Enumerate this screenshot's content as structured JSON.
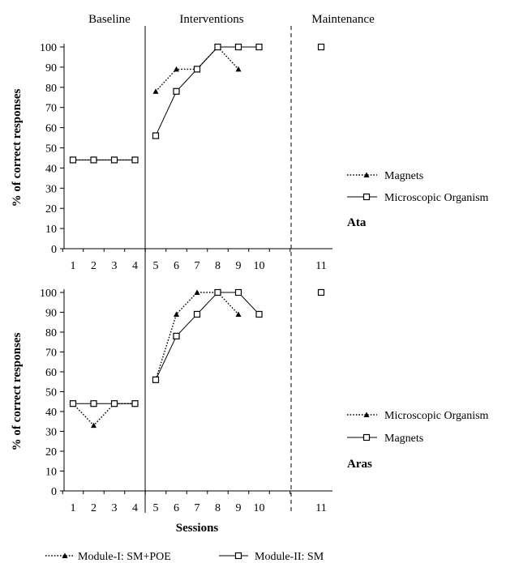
{
  "chart_data": {
    "type": "line",
    "phases": [
      "Baseline",
      "Interventions",
      "Maintenance"
    ],
    "xlabel": "Sessions",
    "ylabel": "% of correct responses",
    "x_ticks": [
      "1",
      "2",
      "3",
      "4",
      "5",
      "6",
      "7",
      "8",
      "9",
      "10",
      "11"
    ],
    "y_ticks": [
      "0",
      "10",
      "20",
      "30",
      "40",
      "50",
      "60",
      "70",
      "80",
      "90",
      "100"
    ],
    "ylim": [
      0,
      100
    ],
    "legend_bottom": [
      {
        "label": "Module-I: SM+POE",
        "style": "dotted",
        "marker": "triangle"
      },
      {
        "label": "Module-II: SM",
        "style": "solid",
        "marker": "square"
      }
    ],
    "panels": [
      {
        "participant": "Ata",
        "series": [
          {
            "name": "Magnets",
            "style": "dotted",
            "marker": "triangle",
            "points": [
              [
                1,
                44
              ],
              [
                2,
                44
              ],
              [
                3,
                44
              ],
              [
                4,
                44
              ],
              [
                5,
                78
              ],
              [
                6,
                89
              ],
              [
                7,
                89
              ],
              [
                8,
                100
              ],
              [
                9,
                89
              ],
              [
                11,
                100
              ]
            ],
            "segments": [
              [
                1,
                2,
                3,
                4
              ],
              [
                5,
                6,
                7,
                8,
                9
              ]
            ]
          },
          {
            "name": "Microscopic Organism",
            "style": "solid",
            "marker": "square",
            "points": [
              [
                1,
                44
              ],
              [
                2,
                44
              ],
              [
                3,
                44
              ],
              [
                4,
                44
              ],
              [
                5,
                56
              ],
              [
                6,
                78
              ],
              [
                7,
                89
              ],
              [
                8,
                100
              ],
              [
                9,
                100
              ],
              [
                10,
                100
              ],
              [
                11,
                100
              ]
            ],
            "segments": [
              [
                1,
                2,
                3,
                4
              ],
              [
                5,
                6,
                7,
                8,
                9,
                10
              ]
            ]
          }
        ]
      },
      {
        "participant": "Aras",
        "series": [
          {
            "name": "Microscopic Organism",
            "style": "dotted",
            "marker": "triangle",
            "points": [
              [
                1,
                44
              ],
              [
                2,
                33
              ],
              [
                3,
                44
              ],
              [
                4,
                44
              ],
              [
                5,
                56
              ],
              [
                6,
                89
              ],
              [
                7,
                100
              ],
              [
                8,
                100
              ],
              [
                9,
                89
              ],
              [
                11,
                100
              ]
            ],
            "segments": [
              [
                1,
                2,
                3,
                4
              ],
              [
                5,
                6,
                7,
                8,
                9
              ]
            ]
          },
          {
            "name": "Magnets",
            "style": "solid",
            "marker": "square",
            "points": [
              [
                1,
                44
              ],
              [
                2,
                44
              ],
              [
                3,
                44
              ],
              [
                4,
                44
              ],
              [
                5,
                56
              ],
              [
                6,
                78
              ],
              [
                7,
                89
              ],
              [
                8,
                100
              ],
              [
                9,
                100
              ],
              [
                10,
                89
              ],
              [
                11,
                100
              ]
            ],
            "segments": [
              [
                1,
                2,
                3,
                4
              ],
              [
                5,
                6,
                7,
                8,
                9,
                10
              ]
            ]
          }
        ]
      }
    ]
  }
}
